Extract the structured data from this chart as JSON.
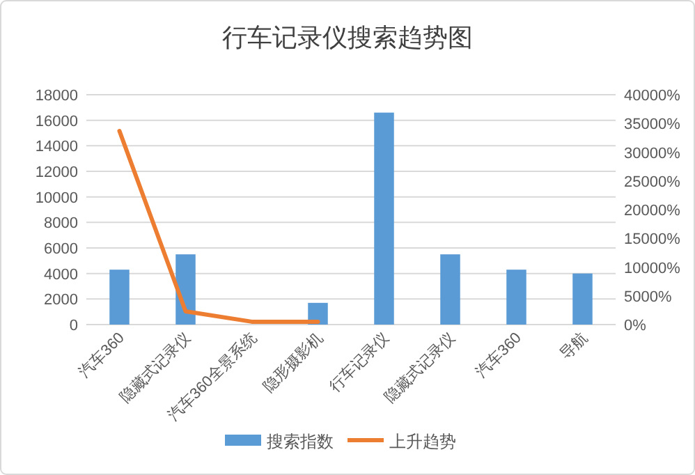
{
  "chart_data": {
    "type": "bar",
    "title": "行车记录仪搜索趋势图",
    "categories": [
      "汽车360",
      "隐藏式记录仪",
      "汽车360全景系统",
      "隐形摄影机",
      "行车记录仪",
      "隐藏式记录仪",
      "汽车360",
      "导航"
    ],
    "series": [
      {
        "name": "搜索指数",
        "color": "#5b9bd5",
        "values": [
          4300,
          5500,
          null,
          1700,
          16600,
          5500,
          4300,
          4000
        ]
      },
      {
        "name": "上升趋势",
        "type": "line",
        "axis": "y2",
        "color": "#ed7d31",
        "values": [
          33700,
          2300,
          500,
          500,
          null,
          null,
          null,
          null
        ]
      }
    ],
    "ylim": [
      0,
      18000
    ],
    "yticks": [
      0,
      2000,
      4000,
      6000,
      8000,
      10000,
      12000,
      14000,
      16000,
      18000
    ],
    "y2lim": [
      0,
      40000
    ],
    "y2ticks": [
      {
        "value": 0,
        "label": "0%"
      },
      {
        "value": 5000,
        "label": "5000%"
      },
      {
        "value": 10000,
        "label": "10000%"
      },
      {
        "value": 15000,
        "label": "15000%"
      },
      {
        "value": 20000,
        "label": "20000%"
      },
      {
        "value": 25000,
        "label": "25000%"
      },
      {
        "value": 30000,
        "label": "30000%"
      },
      {
        "value": 35000,
        "label": "35000%"
      },
      {
        "value": 40000,
        "label": "40000%"
      }
    ],
    "grid": "y",
    "legend": "bottom",
    "marker": "none",
    "line_style": "solid"
  }
}
